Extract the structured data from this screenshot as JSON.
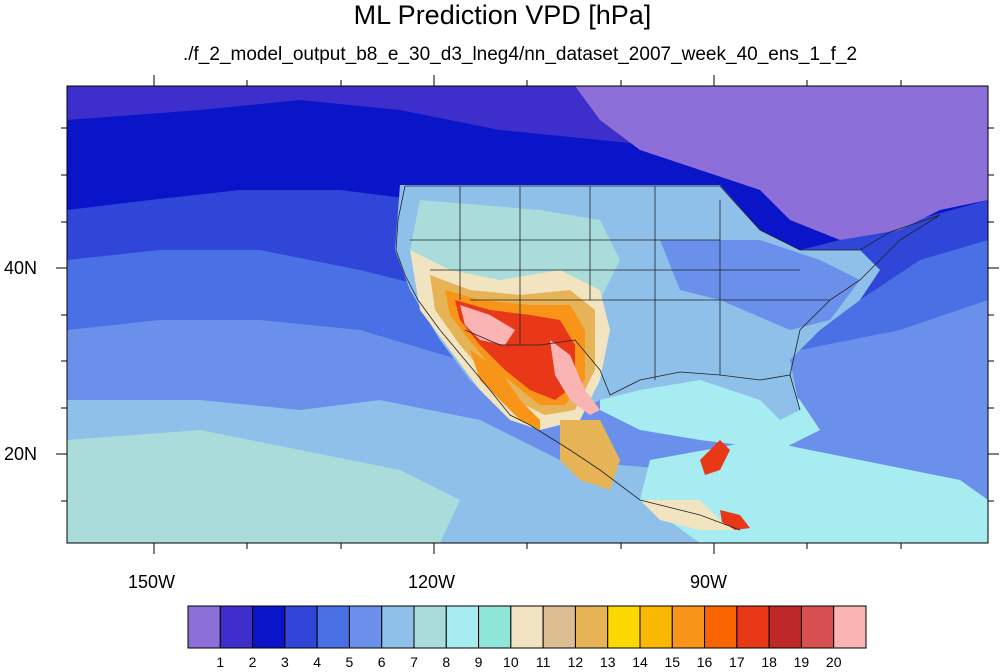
{
  "title": "ML Prediction VPD [hPa]",
  "subtitle": "./f_2_model_output_b8_e_30_d3_lneg4/nn_dataset_2007_week_40_ens_1_f_2",
  "axes": {
    "lat_labels": [
      "40N",
      "20N"
    ],
    "lon_labels": [
      "150W",
      "120W",
      "90W"
    ]
  },
  "colorbar": {
    "tick_labels": [
      "1",
      "2",
      "3",
      "4",
      "5",
      "6",
      "7",
      "8",
      "9",
      "10",
      "11",
      "12",
      "13",
      "14",
      "15",
      "16",
      "17",
      "18",
      "19",
      "20"
    ],
    "colors": [
      "#8c6fd8",
      "#3e2fcc",
      "#0a14c8",
      "#2f46d8",
      "#4a70e6",
      "#6a90ec",
      "#8fc0ea",
      "#aadcdc",
      "#a6ecf0",
      "#8ee6d8",
      "#f2e4c0",
      "#ddbd92",
      "#e6b456",
      "#fad800",
      "#fab800",
      "#f89418",
      "#f86400",
      "#e83818",
      "#be2828",
      "#d65050",
      "#fab4b4"
    ]
  },
  "map": {
    "lon_range": [
      -160,
      -60
    ],
    "lat_range": [
      10,
      59
    ]
  }
}
